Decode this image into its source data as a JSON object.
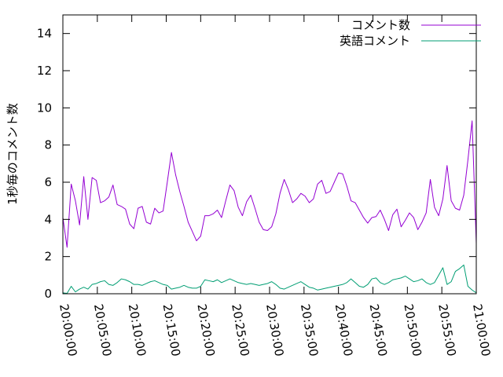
{
  "chart_data": {
    "type": "line",
    "ylabel": "1秒毎のコメント数",
    "xlabel": "",
    "title": "",
    "ylim": [
      0,
      15
    ],
    "xlim": [
      "20:00:00",
      "21:00:00"
    ],
    "x_tick_labels": [
      "20:00:00",
      "20:05:00",
      "20:10:00",
      "20:15:00",
      "20:20:00",
      "20:25:00",
      "20:30:00",
      "20:35:00",
      "20:40:00",
      "20:45:00",
      "20:50:00",
      "20:55:00",
      "21:00:00"
    ],
    "y_tick_labels": [
      "0",
      "2",
      "4",
      "6",
      "8",
      "10",
      "12",
      "14"
    ],
    "y_ticks": [
      0,
      2,
      4,
      6,
      8,
      10,
      12,
      14
    ],
    "grid": false,
    "legend_position": "top-right",
    "x_step_seconds": 30,
    "series": [
      {
        "name": "コメント数",
        "color": "#9400d3",
        "values": [
          4.1,
          2.5,
          5.9,
          5.0,
          3.7,
          6.3,
          4.0,
          6.25,
          6.1,
          4.9,
          5.0,
          5.2,
          5.85,
          4.8,
          4.7,
          4.55,
          3.75,
          3.5,
          4.6,
          4.7,
          3.85,
          3.75,
          4.6,
          4.35,
          4.45,
          6.0,
          7.6,
          6.4,
          5.5,
          4.7,
          3.85,
          3.35,
          2.85,
          3.1,
          4.2,
          4.2,
          4.3,
          4.5,
          4.1,
          5.0,
          5.85,
          5.55,
          4.65,
          4.2,
          4.95,
          5.3,
          4.6,
          3.85,
          3.45,
          3.4,
          3.6,
          4.3,
          5.4,
          6.15,
          5.6,
          4.9,
          5.1,
          5.4,
          5.25,
          4.9,
          5.1,
          5.9,
          6.1,
          5.4,
          5.5,
          6.0,
          6.5,
          6.45,
          5.8,
          5.0,
          4.9,
          4.5,
          4.1,
          3.8,
          4.1,
          4.15,
          4.5,
          4.0,
          3.4,
          4.25,
          4.55,
          3.6,
          3.95,
          4.35,
          4.1,
          3.45,
          3.85,
          4.35,
          6.15,
          4.65,
          4.2,
          5.1,
          6.9,
          5.0,
          4.6,
          4.5,
          5.3,
          7.2,
          9.3,
          2.7
        ]
      },
      {
        "name": "英語コメント",
        "color": "#009e73",
        "values": [
          0.05,
          0.02,
          0.4,
          0.1,
          0.25,
          0.35,
          0.25,
          0.5,
          0.55,
          0.65,
          0.7,
          0.5,
          0.45,
          0.6,
          0.8,
          0.75,
          0.65,
          0.5,
          0.5,
          0.45,
          0.55,
          0.65,
          0.7,
          0.6,
          0.5,
          0.45,
          0.25,
          0.3,
          0.35,
          0.45,
          0.35,
          0.3,
          0.3,
          0.4,
          0.75,
          0.7,
          0.65,
          0.75,
          0.6,
          0.7,
          0.8,
          0.7,
          0.6,
          0.55,
          0.5,
          0.55,
          0.5,
          0.45,
          0.5,
          0.55,
          0.65,
          0.5,
          0.3,
          0.25,
          0.35,
          0.45,
          0.55,
          0.65,
          0.5,
          0.35,
          0.3,
          0.2,
          0.25,
          0.3,
          0.35,
          0.4,
          0.45,
          0.5,
          0.6,
          0.8,
          0.6,
          0.4,
          0.35,
          0.5,
          0.8,
          0.85,
          0.6,
          0.5,
          0.6,
          0.75,
          0.8,
          0.85,
          0.95,
          0.8,
          0.65,
          0.7,
          0.8,
          0.6,
          0.5,
          0.6,
          1.0,
          1.4,
          0.5,
          0.65,
          1.2,
          1.35,
          1.55,
          0.4,
          0.2,
          0.05
        ]
      }
    ]
  }
}
